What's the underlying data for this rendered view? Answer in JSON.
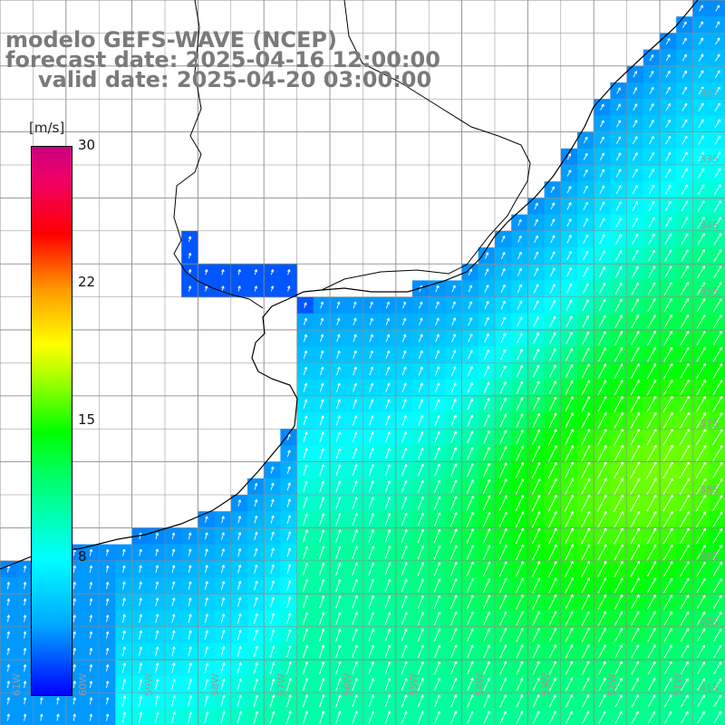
{
  "title": {
    "line1": "modelo GEFS-WAVE (NCEP)",
    "line2": "forecast date: 2025-04-16 12:00:00",
    "line3": "valid date: 2025-04-20 03:00:00"
  },
  "colorbar": {
    "units": "[m/s]",
    "ticks": [
      "30",
      "22",
      "15",
      "8"
    ],
    "tick_values": [
      30,
      22,
      15,
      8
    ],
    "min": 0,
    "max": 30,
    "colors": [
      "#0000ff",
      "#00aaff",
      "#00ffff",
      "#00ff66",
      "#00ff00",
      "#aaff00",
      "#ffff00",
      "#ff9900",
      "#ff0000",
      "#ee0066",
      "#cc0080"
    ]
  },
  "lat_labels": [
    "32S",
    "33S",
    "34S",
    "35S",
    "37S",
    "38S",
    "39S",
    "40S",
    "41S"
  ],
  "lon_labels": [
    "61W",
    "60W",
    "59W",
    "58W",
    "57W",
    "56W",
    "55W",
    "54W",
    "53W",
    "52W",
    "51W"
  ],
  "colors": {
    "land": "#ffffff",
    "coast": "#000000",
    "grid": "#8c8c8c",
    "arrows": "#ffffff",
    "title": "#7a7a7a"
  },
  "field_description_values": {
    "calm_coast": 3,
    "offshore": 9,
    "max_east": 14
  }
}
